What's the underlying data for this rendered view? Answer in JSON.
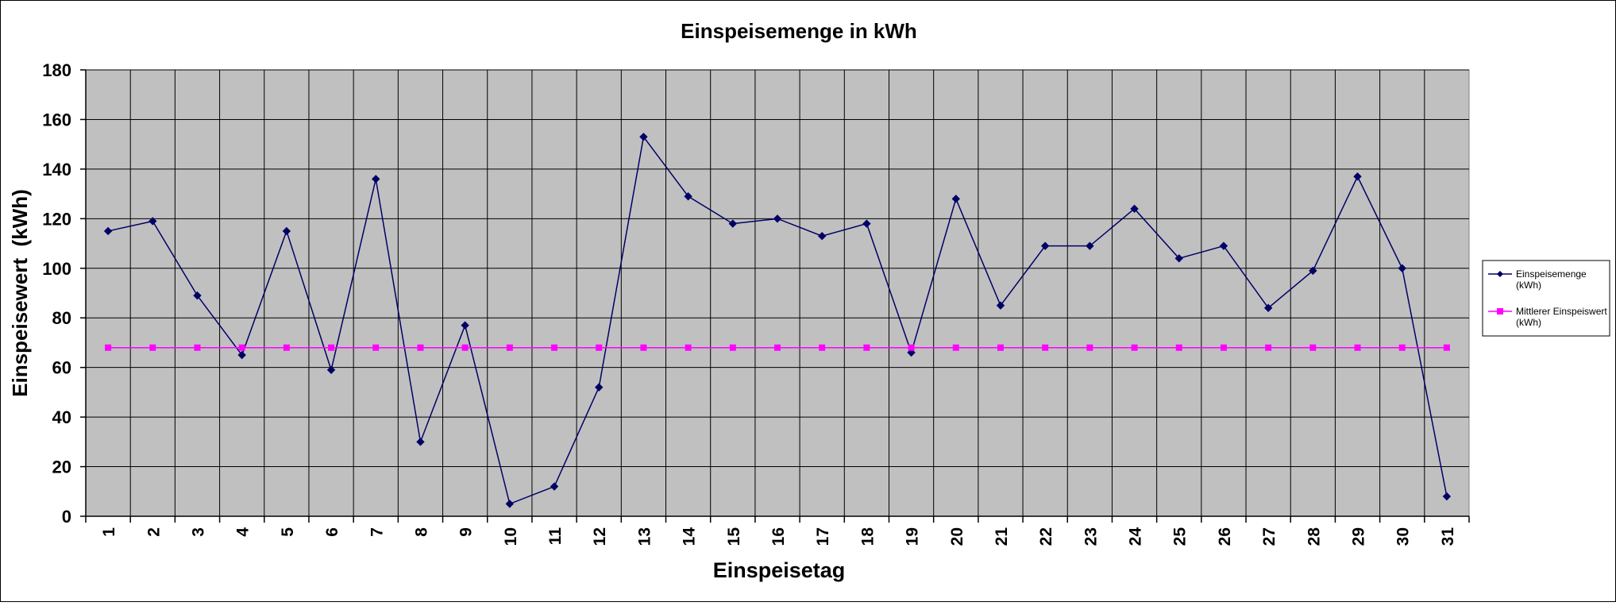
{
  "chart_data": {
    "type": "line",
    "title": "Einspeisemenge in kWh",
    "xlabel": "Einspeisetag",
    "ylabel": "Einspeisewert  (kWh)",
    "ylim": [
      0,
      180
    ],
    "yticks": [
      0,
      20,
      40,
      60,
      80,
      100,
      120,
      140,
      160,
      180
    ],
    "categories": [
      "1",
      "2",
      "3",
      "4",
      "5",
      "6",
      "7",
      "8",
      "9",
      "10",
      "11",
      "12",
      "13",
      "14",
      "15",
      "16",
      "17",
      "18",
      "19",
      "20",
      "21",
      "22",
      "23",
      "24",
      "25",
      "26",
      "27",
      "28",
      "29",
      "30",
      "31"
    ],
    "grid": true,
    "legend_position": "right",
    "series": [
      {
        "name": "Einspeisemenge (kWh)",
        "name_lines": [
          "Einspeisemenge",
          "(kWh)"
        ],
        "color": "#000066",
        "marker": "diamond",
        "values": [
          115,
          119,
          89,
          65,
          115,
          59,
          136,
          30,
          77,
          5,
          12,
          52,
          153,
          129,
          118,
          120,
          113,
          118,
          66,
          128,
          85,
          109,
          109,
          124,
          104,
          109,
          84,
          99,
          137,
          100,
          8
        ]
      },
      {
        "name": "Mittlerer Einspeiswert (kWh)",
        "name_lines": [
          "Mittlerer Einspeiswert",
          "(kWh)"
        ],
        "color": "#ff00ff",
        "marker": "square",
        "values": [
          68,
          68,
          68,
          68,
          68,
          68,
          68,
          68,
          68,
          68,
          68,
          68,
          68,
          68,
          68,
          68,
          68,
          68,
          68,
          68,
          68,
          68,
          68,
          68,
          68,
          68,
          68,
          68,
          68,
          68,
          68
        ]
      }
    ],
    "plot_background": "#c0c0c0"
  }
}
